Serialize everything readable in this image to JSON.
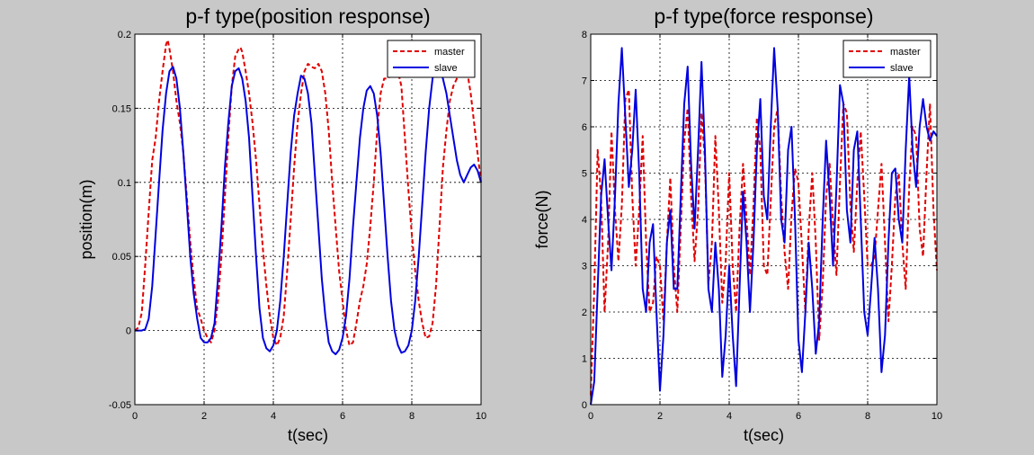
{
  "chart_data": [
    {
      "id": "position",
      "type": "line",
      "title": "p-f type(position response)",
      "xlabel": "t(sec)",
      "ylabel": "position(m)",
      "xlim": [
        0,
        10
      ],
      "ylim": [
        -0.05,
        0.2
      ],
      "xticks": [
        0,
        2,
        4,
        6,
        8,
        10
      ],
      "xtick_labels": [
        "0",
        "2",
        "4",
        "6",
        "8",
        "10"
      ],
      "yticks": [
        -0.05,
        0,
        0.05,
        0.1,
        0.15,
        0.2
      ],
      "ytick_labels": [
        "-0.05",
        "0",
        "0.05",
        "0.1",
        "0.15",
        "0.2"
      ],
      "grid": true,
      "legend_position": "top-right",
      "series": [
        {
          "name": "master",
          "color": "#e00000",
          "dash": "dashed",
          "x": [
            0,
            0.1,
            0.2,
            0.3,
            0.4,
            0.5,
            0.6,
            0.7,
            0.8,
            0.9,
            0.95,
            1.0,
            1.1,
            1.2,
            1.3,
            1.4,
            1.5,
            1.6,
            1.7,
            1.8,
            1.9,
            2.0,
            2.1,
            2.2,
            2.3,
            2.4,
            2.5,
            2.6,
            2.7,
            2.8,
            2.9,
            3.0,
            3.05,
            3.1,
            3.2,
            3.3,
            3.4,
            3.5,
            3.6,
            3.7,
            3.8,
            3.9,
            4.0,
            4.1,
            4.2,
            4.3,
            4.4,
            4.5,
            4.6,
            4.7,
            4.8,
            4.9,
            5.0,
            5.1,
            5.2,
            5.3,
            5.4,
            5.5,
            5.6,
            5.7,
            5.8,
            5.9,
            6.0,
            6.1,
            6.2,
            6.3,
            6.4,
            6.5,
            6.6,
            6.7,
            6.8,
            6.9,
            7.0,
            7.1,
            7.2,
            7.3,
            7.4,
            7.5,
            7.6,
            7.7,
            7.8,
            7.9,
            8.0,
            8.1,
            8.2,
            8.3,
            8.4,
            8.5,
            8.6,
            8.7,
            8.8,
            8.9,
            9.0,
            9.1,
            9.2,
            9.3,
            9.4,
            9.5,
            9.6,
            9.7,
            9.8,
            9.9,
            10.0
          ],
          "y": [
            0.0,
            0.002,
            0.012,
            0.045,
            0.08,
            0.115,
            0.13,
            0.155,
            0.175,
            0.193,
            0.196,
            0.19,
            0.175,
            0.155,
            0.14,
            0.12,
            0.09,
            0.06,
            0.035,
            0.015,
            0.008,
            0.0,
            -0.005,
            -0.008,
            0.0,
            0.02,
            0.05,
            0.09,
            0.13,
            0.165,
            0.185,
            0.19,
            0.191,
            0.188,
            0.175,
            0.16,
            0.14,
            0.115,
            0.085,
            0.055,
            0.03,
            0.01,
            -0.005,
            -0.01,
            -0.005,
            0.01,
            0.04,
            0.075,
            0.11,
            0.14,
            0.16,
            0.175,
            0.18,
            0.178,
            0.177,
            0.18,
            0.175,
            0.16,
            0.135,
            0.1,
            0.07,
            0.04,
            0.02,
            0.0,
            -0.01,
            -0.008,
            0.005,
            0.02,
            0.03,
            0.045,
            0.07,
            0.1,
            0.135,
            0.16,
            0.17,
            0.17,
            0.172,
            0.178,
            0.175,
            0.165,
            0.13,
            0.095,
            0.065,
            0.04,
            0.02,
            0.005,
            -0.005,
            -0.004,
            0.005,
            0.03,
            0.07,
            0.11,
            0.135,
            0.155,
            0.165,
            0.17,
            0.175,
            0.18,
            0.175,
            0.16,
            0.14,
            0.12,
            0.1
          ]
        },
        {
          "name": "slave",
          "color": "#0000e0",
          "dash": "solid",
          "x": [
            0,
            0.1,
            0.2,
            0.3,
            0.4,
            0.5,
            0.6,
            0.7,
            0.8,
            0.9,
            1.0,
            1.1,
            1.2,
            1.3,
            1.4,
            1.5,
            1.6,
            1.7,
            1.8,
            1.9,
            2.0,
            2.1,
            2.2,
            2.3,
            2.4,
            2.5,
            2.6,
            2.7,
            2.8,
            2.9,
            3.0,
            3.1,
            3.2,
            3.3,
            3.4,
            3.5,
            3.6,
            3.7,
            3.8,
            3.9,
            4.0,
            4.1,
            4.2,
            4.3,
            4.4,
            4.5,
            4.6,
            4.7,
            4.8,
            4.9,
            5.0,
            5.1,
            5.2,
            5.3,
            5.4,
            5.5,
            5.6,
            5.7,
            5.8,
            5.9,
            6.0,
            6.1,
            6.2,
            6.3,
            6.4,
            6.5,
            6.6,
            6.7,
            6.8,
            6.9,
            7.0,
            7.1,
            7.2,
            7.3,
            7.4,
            7.5,
            7.6,
            7.7,
            7.8,
            7.9,
            8.0,
            8.1,
            8.2,
            8.3,
            8.4,
            8.5,
            8.6,
            8.7,
            8.8,
            8.9,
            9.0,
            9.1,
            9.2,
            9.3,
            9.4,
            9.5,
            9.6,
            9.7,
            9.8,
            9.9,
            10.0
          ],
          "y": [
            0.0,
            0.0,
            0.0,
            0.001,
            0.008,
            0.03,
            0.065,
            0.1,
            0.135,
            0.16,
            0.175,
            0.178,
            0.17,
            0.15,
            0.12,
            0.085,
            0.05,
            0.025,
            0.008,
            -0.005,
            -0.008,
            -0.008,
            -0.005,
            0.005,
            0.035,
            0.07,
            0.11,
            0.14,
            0.165,
            0.175,
            0.177,
            0.17,
            0.155,
            0.13,
            0.09,
            0.05,
            0.015,
            -0.005,
            -0.012,
            -0.014,
            -0.01,
            0.0,
            0.02,
            0.05,
            0.085,
            0.12,
            0.145,
            0.16,
            0.172,
            0.17,
            0.16,
            0.14,
            0.105,
            0.07,
            0.035,
            0.01,
            -0.008,
            -0.014,
            -0.016,
            -0.013,
            -0.005,
            0.01,
            0.035,
            0.07,
            0.1,
            0.13,
            0.15,
            0.162,
            0.165,
            0.16,
            0.145,
            0.12,
            0.085,
            0.05,
            0.02,
            0.0,
            -0.01,
            -0.015,
            -0.014,
            -0.01,
            0.0,
            0.02,
            0.05,
            0.085,
            0.12,
            0.15,
            0.17,
            0.18,
            0.178,
            0.17,
            0.16,
            0.145,
            0.13,
            0.115,
            0.105,
            0.1,
            0.105,
            0.11,
            0.112,
            0.108,
            0.1
          ]
        }
      ]
    },
    {
      "id": "force",
      "type": "line",
      "title": "p-f type(force response)",
      "xlabel": "t(sec)",
      "ylabel": "force(N)",
      "xlim": [
        0,
        10
      ],
      "ylim": [
        0,
        8
      ],
      "xticks": [
        0,
        2,
        4,
        6,
        8,
        10
      ],
      "xtick_labels": [
        "0",
        "2",
        "4",
        "6",
        "8",
        "10"
      ],
      "yticks": [
        0,
        1,
        2,
        3,
        4,
        5,
        6,
        7,
        8
      ],
      "ytick_labels": [
        "0",
        "1",
        "2",
        "3",
        "4",
        "5",
        "6",
        "7",
        "8"
      ],
      "grid": true,
      "legend_position": "top-right",
      "series": [
        {
          "name": "master",
          "color": "#e00000",
          "dash": "dashed",
          "x": [
            0,
            0.1,
            0.2,
            0.3,
            0.4,
            0.5,
            0.6,
            0.7,
            0.8,
            0.9,
            1.0,
            1.1,
            1.2,
            1.3,
            1.4,
            1.5,
            1.6,
            1.7,
            1.8,
            1.9,
            2.0,
            2.1,
            2.2,
            2.3,
            2.4,
            2.5,
            2.6,
            2.7,
            2.8,
            2.9,
            3.0,
            3.1,
            3.2,
            3.3,
            3.4,
            3.5,
            3.6,
            3.7,
            3.8,
            3.9,
            4.0,
            4.1,
            4.2,
            4.3,
            4.4,
            4.5,
            4.6,
            4.7,
            4.8,
            4.9,
            5.0,
            5.1,
            5.2,
            5.3,
            5.4,
            5.5,
            5.6,
            5.7,
            5.8,
            5.9,
            6.0,
            6.1,
            6.2,
            6.3,
            6.4,
            6.5,
            6.6,
            6.7,
            6.8,
            6.9,
            7.0,
            7.1,
            7.2,
            7.3,
            7.4,
            7.5,
            7.6,
            7.7,
            7.8,
            7.9,
            8.0,
            8.1,
            8.2,
            8.3,
            8.4,
            8.5,
            8.6,
            8.7,
            8.8,
            8.9,
            9.0,
            9.1,
            9.2,
            9.3,
            9.4,
            9.5,
            9.6,
            9.7,
            9.8,
            9.9,
            10.0
          ],
          "y": [
            0.2,
            2.5,
            5.5,
            4.5,
            2.0,
            3.5,
            5.9,
            4.2,
            3.1,
            4.3,
            6.6,
            6.8,
            4.5,
            3.0,
            4.2,
            5.8,
            3.5,
            2.0,
            2.2,
            3.2,
            3.0,
            1.8,
            3.5,
            4.9,
            3.0,
            2.0,
            3.8,
            5.7,
            6.4,
            4.5,
            3.1,
            4.2,
            6.3,
            5.3,
            2.6,
            3.5,
            5.8,
            4.2,
            2.2,
            3.1,
            5.0,
            3.0,
            2.0,
            3.8,
            5.2,
            4.0,
            2.8,
            4.3,
            6.2,
            5.5,
            3.0,
            2.8,
            4.4,
            6.0,
            6.4,
            4.5,
            3.3,
            2.5,
            4.1,
            5.1,
            4.8,
            3.4,
            2.0,
            3.8,
            5.0,
            3.5,
            1.4,
            2.6,
            4.5,
            5.2,
            3.9,
            2.8,
            4.8,
            6.5,
            6.3,
            4.3,
            3.3,
            4.8,
            5.9,
            4.5,
            3.0,
            3.0,
            3.2,
            4.2,
            5.2,
            3.5,
            1.8,
            3.0,
            4.5,
            5.0,
            3.5,
            2.5,
            4.7,
            6.0,
            5.8,
            3.8,
            3.2,
            5.0,
            6.5,
            4.2,
            2.9
          ]
        },
        {
          "name": "slave",
          "color": "#0000e0",
          "dash": "solid",
          "x": [
            0,
            0.1,
            0.2,
            0.3,
            0.4,
            0.5,
            0.6,
            0.7,
            0.8,
            0.9,
            1.0,
            1.1,
            1.2,
            1.3,
            1.4,
            1.5,
            1.6,
            1.7,
            1.8,
            1.9,
            2.0,
            2.1,
            2.2,
            2.3,
            2.4,
            2.5,
            2.6,
            2.7,
            2.8,
            2.9,
            3.0,
            3.1,
            3.2,
            3.3,
            3.4,
            3.5,
            3.6,
            3.7,
            3.8,
            3.9,
            4.0,
            4.1,
            4.2,
            4.3,
            4.4,
            4.5,
            4.6,
            4.7,
            4.8,
            4.9,
            5.0,
            5.1,
            5.2,
            5.3,
            5.4,
            5.5,
            5.6,
            5.7,
            5.8,
            5.9,
            6.0,
            6.1,
            6.2,
            6.3,
            6.4,
            6.5,
            6.6,
            6.7,
            6.8,
            6.9,
            7.0,
            7.1,
            7.2,
            7.3,
            7.4,
            7.5,
            7.6,
            7.7,
            7.8,
            7.9,
            8.0,
            8.1,
            8.2,
            8.3,
            8.4,
            8.5,
            8.6,
            8.7,
            8.8,
            8.9,
            9.0,
            9.1,
            9.2,
            9.3,
            9.4,
            9.5,
            9.6,
            9.7,
            9.8,
            9.9,
            10.0
          ],
          "y": [
            0.0,
            0.5,
            2.5,
            4.5,
            5.3,
            4.0,
            2.9,
            4.5,
            6.5,
            7.7,
            6.2,
            4.7,
            5.5,
            6.8,
            5.0,
            2.5,
            2.0,
            3.5,
            3.9,
            2.0,
            0.3,
            1.5,
            3.5,
            4.2,
            2.5,
            2.5,
            4.5,
            6.5,
            7.3,
            5.2,
            3.8,
            5.5,
            7.4,
            5.5,
            2.5,
            2.0,
            3.5,
            2.5,
            0.6,
            1.5,
            3.0,
            1.5,
            0.4,
            2.5,
            4.6,
            3.5,
            2.0,
            3.5,
            5.5,
            6.6,
            4.5,
            4.0,
            6.0,
            7.7,
            6.4,
            4.0,
            3.5,
            5.5,
            6.0,
            4.0,
            1.4,
            0.7,
            2.0,
            3.5,
            2.5,
            1.1,
            1.8,
            4.0,
            5.7,
            4.5,
            3.0,
            4.7,
            6.9,
            6.5,
            4.2,
            3.5,
            5.5,
            5.9,
            4.0,
            2.0,
            1.5,
            2.5,
            3.6,
            2.5,
            0.7,
            1.5,
            3.5,
            5.0,
            5.1,
            4.0,
            3.5,
            5.5,
            7.1,
            5.5,
            4.7,
            6.0,
            6.6,
            6.0,
            5.7,
            5.9,
            5.8
          ]
        }
      ]
    }
  ]
}
